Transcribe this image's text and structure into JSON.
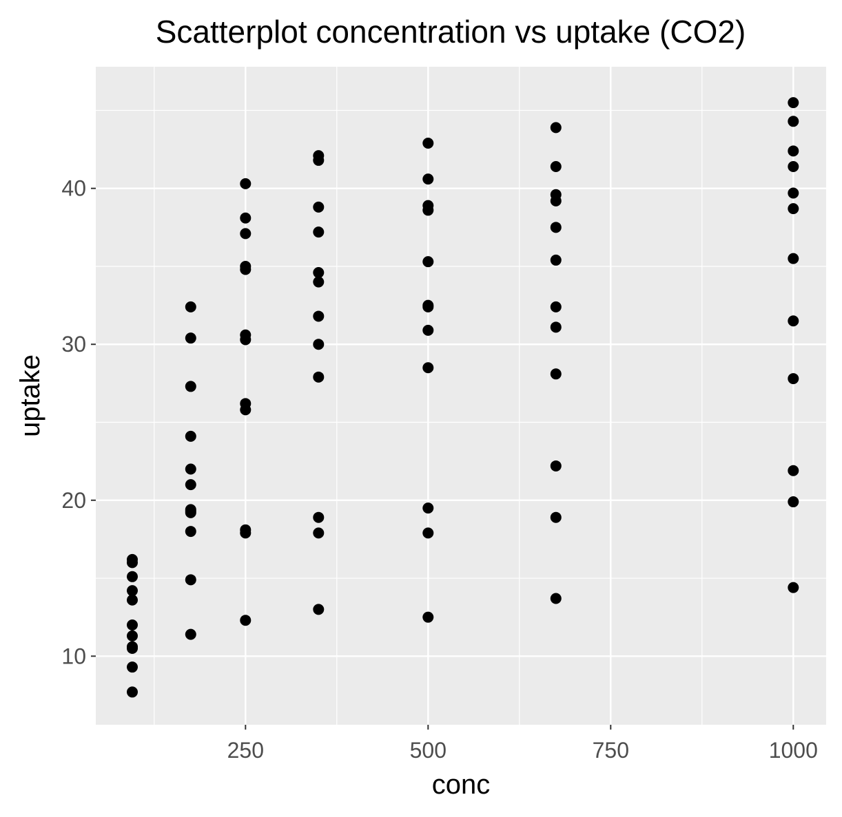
{
  "chart_data": {
    "type": "scatter",
    "title": "Scatterplot concentration vs uptake (CO2)",
    "xlabel": "conc",
    "ylabel": "uptake",
    "xlim": [
      45,
      1045
    ],
    "ylim": [
      5.6,
      47.8
    ],
    "x_ticks": [
      250,
      500,
      750,
      1000
    ],
    "y_ticks": [
      10,
      20,
      30,
      40
    ],
    "grid": true,
    "colors": {
      "panel": "#ebebeb",
      "grid": "#ffffff",
      "point": "#000000",
      "tick_text": "#4d4d4d"
    },
    "series": [
      {
        "x": [
          95,
          95,
          95,
          95,
          95,
          95,
          95,
          95,
          95,
          95,
          95,
          95,
          175,
          175,
          175,
          175,
          175,
          175,
          175,
          175,
          175,
          175,
          175,
          175,
          250,
          250,
          250,
          250,
          250,
          250,
          250,
          250,
          250,
          250,
          250,
          250,
          350,
          350,
          350,
          350,
          350,
          350,
          350,
          350,
          350,
          350,
          350,
          350,
          500,
          500,
          500,
          500,
          500,
          500,
          500,
          500,
          500,
          500,
          500,
          500,
          675,
          675,
          675,
          675,
          675,
          675,
          675,
          675,
          675,
          675,
          675,
          675,
          1000,
          1000,
          1000,
          1000,
          1000,
          1000,
          1000,
          1000,
          1000,
          1000,
          1000,
          1000
        ],
        "y": [
          16.2,
          16.0,
          15.1,
          14.2,
          13.6,
          12.0,
          11.3,
          10.6,
          10.5,
          9.3,
          7.7,
          10.6,
          32.4,
          30.4,
          27.3,
          24.1,
          22.0,
          21.0,
          19.4,
          19.2,
          18.0,
          14.9,
          11.4,
          19.3,
          40.3,
          38.1,
          37.1,
          35.0,
          34.8,
          30.6,
          30.3,
          26.2,
          25.8,
          18.1,
          17.9,
          12.3,
          42.1,
          41.8,
          38.8,
          37.2,
          34.6,
          34.0,
          31.8,
          30.0,
          27.9,
          18.9,
          17.9,
          13.0,
          42.9,
          40.6,
          38.9,
          38.6,
          35.3,
          32.5,
          32.4,
          30.9,
          28.5,
          19.5,
          17.9,
          12.5,
          43.9,
          41.4,
          39.6,
          39.2,
          37.5,
          35.4,
          32.4,
          31.1,
          28.1,
          22.2,
          18.9,
          13.7,
          45.5,
          44.3,
          42.4,
          41.4,
          39.7,
          38.7,
          35.5,
          31.5,
          27.8,
          21.9,
          19.9,
          14.4
        ]
      }
    ]
  }
}
